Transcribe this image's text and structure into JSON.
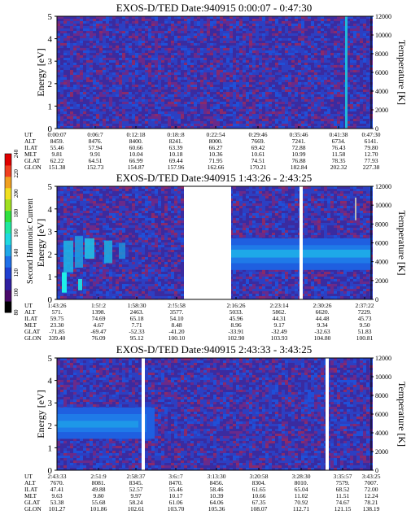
{
  "figure": {
    "colorbar": {
      "label": "Second Harmonic Current",
      "ticks": [
        "80",
        "100",
        "120",
        "140",
        "160",
        "180",
        "200",
        "220",
        "240"
      ]
    },
    "yaxis_left_label": "Energy [eV]",
    "yaxis_right_label": "Temperature [K]",
    "yticks_left": [
      "0",
      "1",
      "2",
      "3",
      "4",
      "5"
    ],
    "yticks_right": [
      "0",
      "2000",
      "4000",
      "6000",
      "8000",
      "10000",
      "12000"
    ],
    "row_labels": [
      "UT",
      "ALT",
      "ILAT",
      "MLT",
      "GLAT",
      "GLON"
    ]
  },
  "chart_data": [
    {
      "type": "heatmap",
      "title": "EXOS-D/TED   Date:940915   0:00:07 - 0:47:30",
      "ylabel": "Energy [eV]",
      "ylabel_right": "Temperature [K]",
      "ylim": [
        0,
        5
      ],
      "ylim_right": [
        0,
        12000
      ],
      "columns": [
        {
          "UT": "0:00:07",
          "ALT": "8459.",
          "ILAT": "55.46",
          "MLT": "9.81",
          "GLAT": "62.22",
          "GLON": "151.38"
        },
        {
          "UT": "0:06:7",
          "ALT": "8476.",
          "ILAT": "57.94",
          "MLT": "9.91",
          "GLAT": "64.51",
          "GLON": "152.73"
        },
        {
          "UT": "0:12:18",
          "ALT": "8400.",
          "ILAT": "60.66",
          "MLT": "10.04",
          "GLAT": "66.99",
          "GLON": "154.87"
        },
        {
          "UT": "0:18::8",
          "ALT": "8241.",
          "ILAT": "63.39",
          "MLT": "10.18",
          "GLAT": "69.44",
          "GLON": "157.96"
        },
        {
          "UT": "0:22:54",
          "ALT": "8000.",
          "ILAT": "66.27",
          "MLT": "10.36",
          "GLAT": "71.95",
          "GLON": "162.66"
        },
        {
          "UT": "0:29:46",
          "ALT": "7669.",
          "ILAT": "69.42",
          "MLT": "10.61",
          "GLAT": "74.51",
          "GLON": "170.21"
        },
        {
          "UT": "0:35:46",
          "ALT": "7241.",
          "ILAT": "72.88",
          "MLT": "10.99",
          "GLAT": "76.88",
          "GLON": "182.84"
        },
        {
          "UT": "0:41:38",
          "ALT": "6734.",
          "ILAT": "76.43",
          "MLT": "11.58",
          "GLAT": "78.35",
          "GLON": "202.32"
        },
        {
          "UT": "0:47:30",
          "ALT": "6141.",
          "ILAT": "79.80",
          "MLT": "12.70",
          "GLAT": "77.93",
          "GLON": "227.38"
        }
      ]
    },
    {
      "type": "heatmap",
      "title": "EXOS-D/TED   Date:940915   1:43:26 - 2:43:25",
      "ylabel": "Energy [eV]",
      "ylabel_right": "Temperature [K]",
      "ylim": [
        0,
        5
      ],
      "ylim_right": [
        0,
        12000
      ],
      "columns": [
        {
          "UT": "1:43:26",
          "ALT": "571.",
          "ILAT": "59.75",
          "MLT": "23.30",
          "GLAT": "-71.85",
          "GLON": "339.40"
        },
        {
          "UT": "1:5!:2",
          "ALT": "1398.",
          "ILAT": "74.69",
          "MLT": "4.67",
          "GLAT": "-69.47",
          "GLON": "76.09"
        },
        {
          "UT": "1:58:30",
          "ALT": "2463.",
          "ILAT": "65.18",
          "MLT": "7.71",
          "GLAT": "-52.33",
          "GLON": "95.12"
        },
        {
          "UT": "2:!5:58",
          "ALT": "3577.",
          "ILAT": "54.10",
          "MLT": "8.48",
          "GLAT": "-41.20",
          "GLON": "100.10"
        },
        {
          "UT": "2:16:26",
          "ALT": "5033.",
          "ILAT": "45.96",
          "MLT": "8.96",
          "GLAT": "-33.91",
          "GLON": "102.90"
        },
        {
          "UT": "2:23:14",
          "ALT": "5862.",
          "ILAT": "44.31",
          "MLT": "9.17",
          "GLAT": "-32.49",
          "GLON": "103.93"
        },
        {
          "UT": "2:30:26",
          "ALT": "6620.",
          "ILAT": "44.48",
          "MLT": "9.34",
          "GLAT": "-32.63",
          "GLON": "104.80"
        },
        {
          "UT": "2:37:22",
          "ALT": "7229.",
          "ILAT": "45.73",
          "MLT": "9.50",
          "GLAT": "51.83",
          "GLON": "100.81"
        }
      ]
    },
    {
      "type": "heatmap",
      "title": "EXOS-D/TED   Date:940915   2:43:33 - 3:43:25",
      "ylabel": "Energy [eV]",
      "ylabel_right": "Temperature [K]",
      "ylim": [
        0,
        5
      ],
      "ylim_right": [
        0,
        12000
      ],
      "columns": [
        {
          "UT": "2:43:33",
          "ALT": "7670.",
          "ILAT": "47.41",
          "MLT": "9.63",
          "GLAT": "53.38",
          "GLON": "101.27"
        },
        {
          "UT": "2:51:9",
          "ALT": "8081.",
          "ILAT": "49.88",
          "MLT": "9.80",
          "GLAT": "55.68",
          "GLON": "101.86"
        },
        {
          "UT": "2:58:37",
          "ALT": "8345.",
          "ILAT": "52.57",
          "MLT": "9.97",
          "GLAT": "58.24",
          "GLON": "102.61"
        },
        {
          "UT": "3:6::7",
          "ALT": "8470.",
          "ILAT": "55.46",
          "MLT": "10.17",
          "GLAT": "61.06",
          "GLON": "103.70"
        },
        {
          "UT": "3:13:30",
          "ALT": "8456.",
          "ILAT": "58.46",
          "MLT": "10.39",
          "GLAT": "64.06",
          "GLON": "105.36"
        },
        {
          "UT": "3:20:58",
          "ALT": "8304.",
          "ILAT": "61.65",
          "MLT": "10.66",
          "GLAT": "67.35",
          "GLON": "108.07"
        },
        {
          "UT": "3:28:30",
          "ALT": "8010.",
          "ILAT": "65.04",
          "MLT": "11.02",
          "GLAT": "70.92",
          "GLON": "112.71"
        },
        {
          "UT": "3:35:57",
          "ALT": "7579.",
          "ILAT": "68.52",
          "MLT": "11.51",
          "GLAT": "74.67",
          "GLON": "121.15"
        },
        {
          "UT": "3:43:25",
          "ALT": "7007.",
          "ILAT": "72.00",
          "MLT": "12.24",
          "GLAT": "78.21",
          "GLON": "138.19"
        }
      ]
    }
  ]
}
